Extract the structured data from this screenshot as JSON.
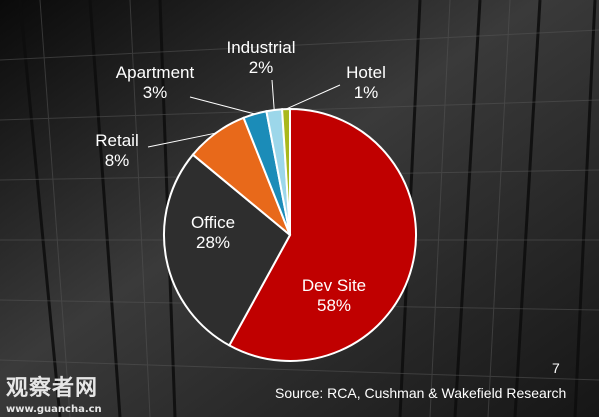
{
  "chart_data": {
    "type": "pie",
    "slices": [
      {
        "label": "Dev Site",
        "percent_label": "58%",
        "value": 58,
        "color": "#c00000"
      },
      {
        "label": "Office",
        "percent_label": "28%",
        "value": 28,
        "color": "#2e2e2e"
      },
      {
        "label": "Retail",
        "percent_label": "8%",
        "value": 8,
        "color": "#e8691a"
      },
      {
        "label": "Apartment",
        "percent_label": "3%",
        "value": 3,
        "color": "#1b8cb8"
      },
      {
        "label": "Industrial",
        "percent_label": "2%",
        "value": 2,
        "color": "#9cd7ea"
      },
      {
        "label": "Hotel",
        "percent_label": "1%",
        "value": 1,
        "color": "#a9b81c"
      }
    ]
  },
  "page_number": "7",
  "source": "Source: RCA, Cushman & Wakefield Research",
  "watermark": {
    "text_cn": "观察者网",
    "url": "www.guancha.cn"
  }
}
